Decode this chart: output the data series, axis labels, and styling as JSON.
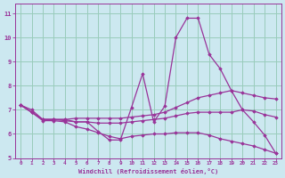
{
  "background_color": "#cce8f0",
  "grid_color": "#99ccbb",
  "line_color": "#993399",
  "xlabel": "Windchill (Refroidissement éolien,°C)",
  "xlim": [
    -0.5,
    23.5
  ],
  "ylim": [
    5,
    11.4
  ],
  "yticks": [
    5,
    6,
    7,
    8,
    9,
    10,
    11
  ],
  "xticks": [
    0,
    1,
    2,
    3,
    4,
    5,
    6,
    7,
    8,
    9,
    10,
    11,
    12,
    13,
    14,
    15,
    16,
    17,
    18,
    19,
    20,
    21,
    22,
    23
  ],
  "series": [
    {
      "x": [
        0,
        1,
        2,
        3,
        4,
        5,
        6,
        7,
        8,
        9,
        10,
        11,
        12,
        13,
        14,
        15,
        16,
        17,
        18,
        19,
        20,
        21,
        22,
        23
      ],
      "y": [
        7.2,
        7.0,
        6.6,
        6.6,
        6.6,
        6.5,
        6.5,
        6.1,
        5.75,
        5.75,
        7.1,
        8.5,
        6.5,
        7.15,
        10.0,
        10.8,
        10.8,
        9.3,
        8.7,
        7.8,
        7.0,
        6.5,
        5.95,
        5.2
      ]
    },
    {
      "x": [
        0,
        1,
        2,
        3,
        4,
        5,
        6,
        7,
        8,
        9,
        10,
        11,
        12,
        13,
        14,
        15,
        16,
        17,
        18,
        19,
        20,
        21,
        22,
        23
      ],
      "y": [
        7.2,
        6.9,
        6.6,
        6.6,
        6.6,
        6.65,
        6.65,
        6.65,
        6.65,
        6.65,
        6.7,
        6.75,
        6.8,
        6.9,
        7.1,
        7.3,
        7.5,
        7.6,
        7.7,
        7.8,
        7.7,
        7.6,
        7.5,
        7.45
      ]
    },
    {
      "x": [
        0,
        1,
        2,
        3,
        4,
        5,
        6,
        7,
        8,
        9,
        10,
        11,
        12,
        13,
        14,
        15,
        16,
        17,
        18,
        19,
        20,
        21,
        22,
        23
      ],
      "y": [
        7.2,
        6.9,
        6.6,
        6.6,
        6.55,
        6.5,
        6.5,
        6.45,
        6.45,
        6.45,
        6.5,
        6.55,
        6.6,
        6.65,
        6.75,
        6.85,
        6.9,
        6.9,
        6.9,
        6.9,
        7.0,
        6.95,
        6.8,
        6.7
      ]
    },
    {
      "x": [
        0,
        1,
        2,
        3,
        4,
        5,
        6,
        7,
        8,
        9,
        10,
        11,
        12,
        13,
        14,
        15,
        16,
        17,
        18,
        19,
        20,
        21,
        22,
        23
      ],
      "y": [
        7.2,
        6.9,
        6.55,
        6.55,
        6.5,
        6.3,
        6.2,
        6.05,
        5.9,
        5.8,
        5.9,
        5.95,
        6.0,
        6.0,
        6.05,
        6.05,
        6.05,
        5.95,
        5.8,
        5.7,
        5.6,
        5.5,
        5.35,
        5.2
      ]
    }
  ]
}
